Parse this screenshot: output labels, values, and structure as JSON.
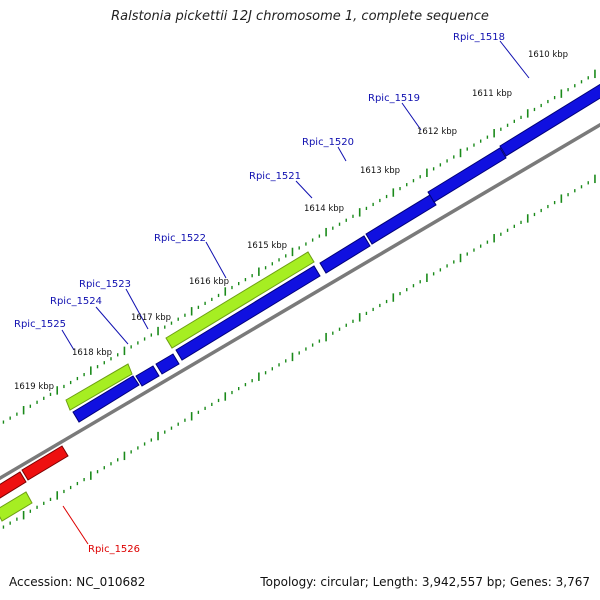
{
  "title": "Ralstonia pickettii 12J chromosome 1, complete sequence",
  "accession": "Accession: NC_010682",
  "summary": "Topology: circular; Length: 3,942,557 bp; Genes: 3,767",
  "colors": {
    "forward_cds": "#1010e0",
    "reverse_cds": "#ee1010",
    "gene_feature": "#a6ee22",
    "backbone": "#7a7a7a",
    "ticks": "#1a8a1a",
    "forward_label": "#1010b0",
    "reverse_label": "#dd0000"
  },
  "ticks": [
    "1610 kbp",
    "1611 kbp",
    "1612 kbp",
    "1613 kbp",
    "1614 kbp",
    "1615 kbp",
    "1616 kbp",
    "1617 kbp",
    "1618 kbp",
    "1619 kbp"
  ],
  "gene_labels": [
    {
      "text": "Rpic_1518",
      "strand": "forward"
    },
    {
      "text": "Rpic_1519",
      "strand": "forward"
    },
    {
      "text": "Rpic_1520",
      "strand": "forward"
    },
    {
      "text": "Rpic_1521",
      "strand": "forward"
    },
    {
      "text": "Rpic_1522",
      "strand": "forward"
    },
    {
      "text": "Rpic_1523",
      "strand": "forward"
    },
    {
      "text": "Rpic_1524",
      "strand": "forward"
    },
    {
      "text": "Rpic_1525",
      "strand": "forward"
    },
    {
      "text": "Rpic_1526",
      "strand": "reverse"
    }
  ]
}
